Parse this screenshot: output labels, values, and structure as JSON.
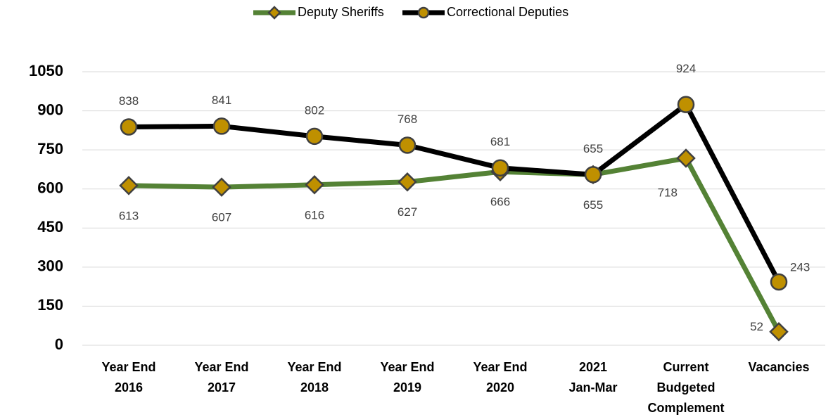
{
  "chart_data": {
    "type": "line",
    "categories": [
      [
        "Year End",
        "2016"
      ],
      [
        "Year End",
        "2017"
      ],
      [
        "Year End",
        "2018"
      ],
      [
        "Year End",
        "2019"
      ],
      [
        "Year End",
        "2020"
      ],
      [
        "2021",
        "Jan-Mar"
      ],
      [
        "Current",
        "Budgeted",
        "Complement"
      ],
      [
        "Vacancies"
      ]
    ],
    "series": [
      {
        "name": "Deputy Sheriffs",
        "color": "#548235",
        "marker": "diamond",
        "values": [
          613,
          607,
          616,
          627,
          666,
          655,
          718,
          52
        ]
      },
      {
        "name": "Correctional Deputies",
        "color": "#000000",
        "marker": "circle",
        "values": [
          838,
          841,
          802,
          768,
          681,
          655,
          924,
          243
        ]
      }
    ],
    "marker_color": "#bf9000",
    "ylim": [
      0,
      1050
    ],
    "yticks": [
      0,
      150,
      300,
      450,
      600,
      750,
      900,
      1050
    ],
    "grid": true,
    "legend": "top"
  }
}
